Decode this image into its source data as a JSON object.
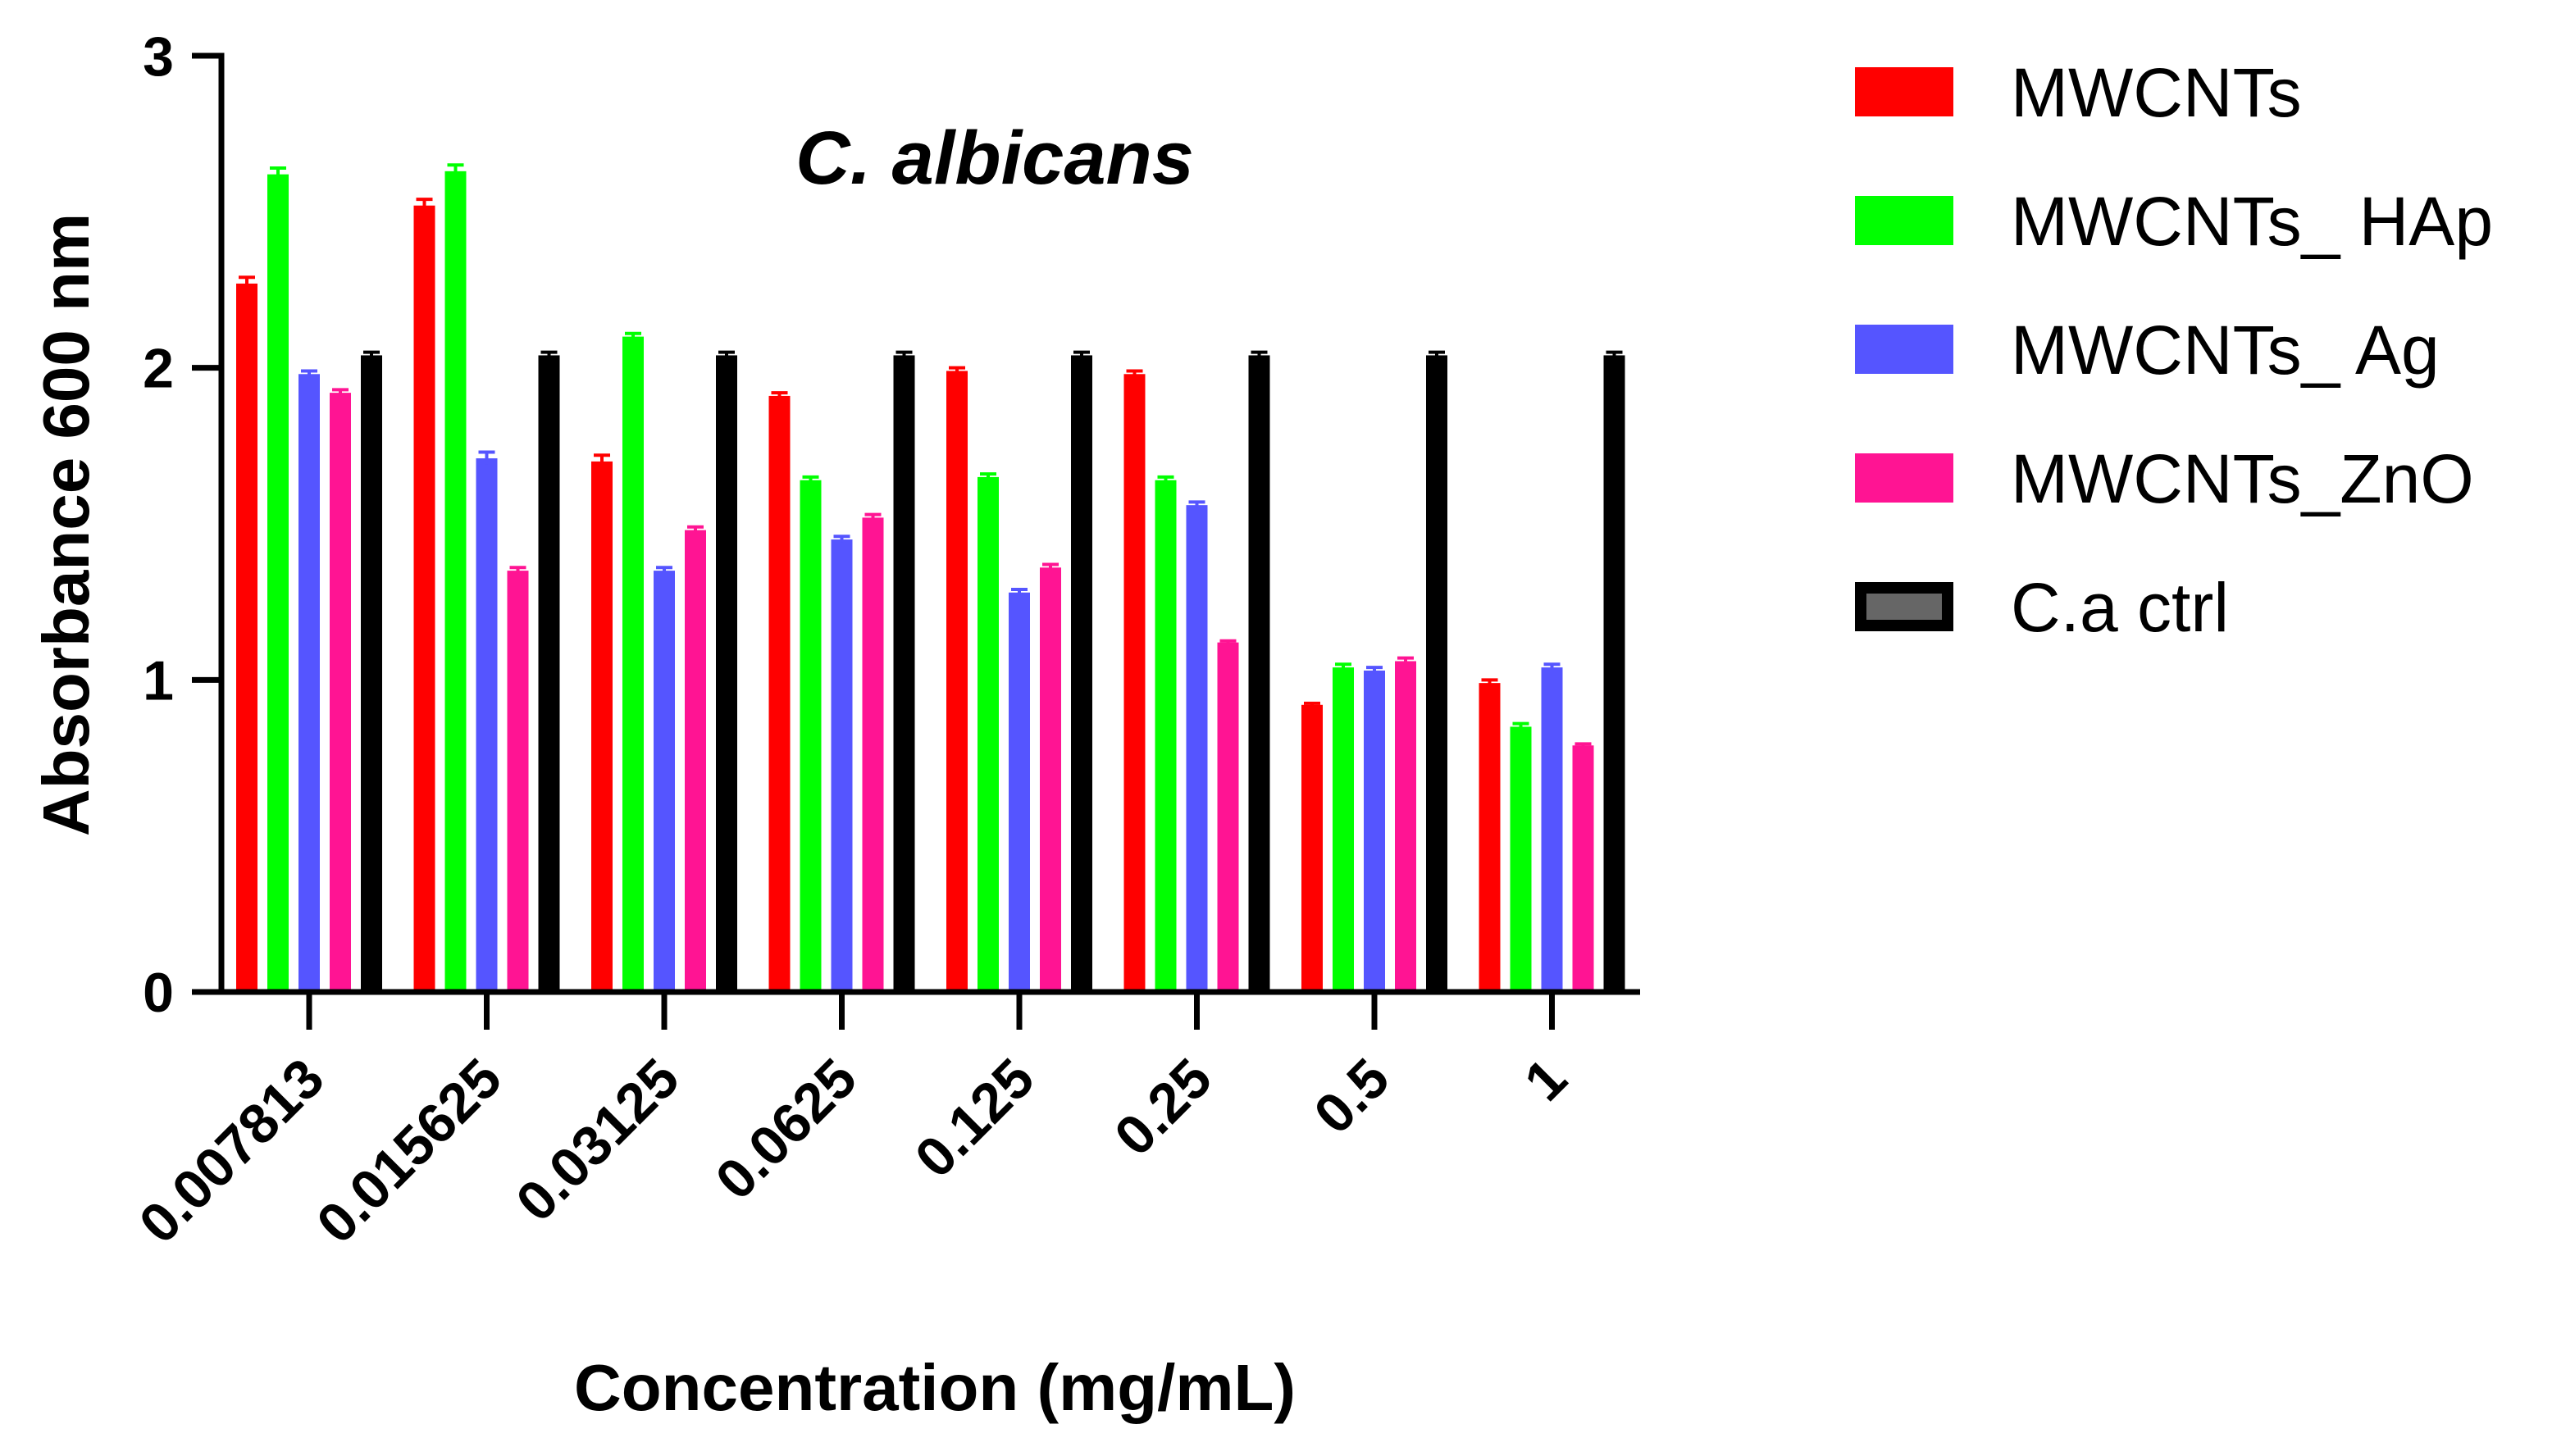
{
  "chart_data": {
    "type": "bar",
    "title": "C. albicans",
    "xlabel": "Concentration (mg/mL)",
    "ylabel": "Absorbance 600 nm",
    "ylim": [
      0,
      3
    ],
    "yticks": [
      0,
      1,
      2,
      3
    ],
    "grid": false,
    "legend_position": "right",
    "categories": [
      "0.007813",
      "0.015625",
      "0.03125",
      "0.0625",
      "0.125",
      "0.25",
      "0.5",
      "1"
    ],
    "series": [
      {
        "name": "MWCNTs",
        "color": "#ff0000",
        "values": [
          2.27,
          2.52,
          1.7,
          1.91,
          1.99,
          1.98,
          0.92,
          0.99
        ],
        "errors": [
          0.02,
          0.02,
          0.02,
          0.01,
          0.01,
          0.01,
          0.005,
          0.01
        ]
      },
      {
        "name": "MWCNTs_ HAp",
        "color": "#00ff00",
        "values": [
          2.62,
          2.63,
          2.1,
          1.64,
          1.65,
          1.64,
          1.04,
          0.85
        ],
        "errors": [
          0.02,
          0.02,
          0.01,
          0.01,
          0.01,
          0.01,
          0.01,
          0.01
        ]
      },
      {
        "name": "MWCNTs_ Ag",
        "color": "#5555ff",
        "values": [
          1.98,
          1.71,
          1.35,
          1.45,
          1.28,
          1.56,
          1.03,
          1.04
        ],
        "errors": [
          0.01,
          0.02,
          0.01,
          0.01,
          0.01,
          0.01,
          0.01,
          0.01
        ]
      },
      {
        "name": "MWCNTs_ZnO",
        "color": "#ff1493",
        "values": [
          1.92,
          1.35,
          1.48,
          1.52,
          1.36,
          1.12,
          1.06,
          0.79
        ],
        "errors": [
          0.01,
          0.01,
          0.01,
          0.01,
          0.01,
          0.005,
          0.01,
          0.005
        ]
      },
      {
        "name": "C.a ctrl",
        "color": "#000000",
        "legend_fill": "#666666",
        "values": [
          2.04,
          2.04,
          2.04,
          2.04,
          2.04,
          2.04,
          2.04,
          2.04
        ],
        "errors": [
          0.01,
          0.01,
          0.01,
          0.01,
          0.01,
          0.01,
          0.01,
          0.01
        ]
      }
    ]
  }
}
